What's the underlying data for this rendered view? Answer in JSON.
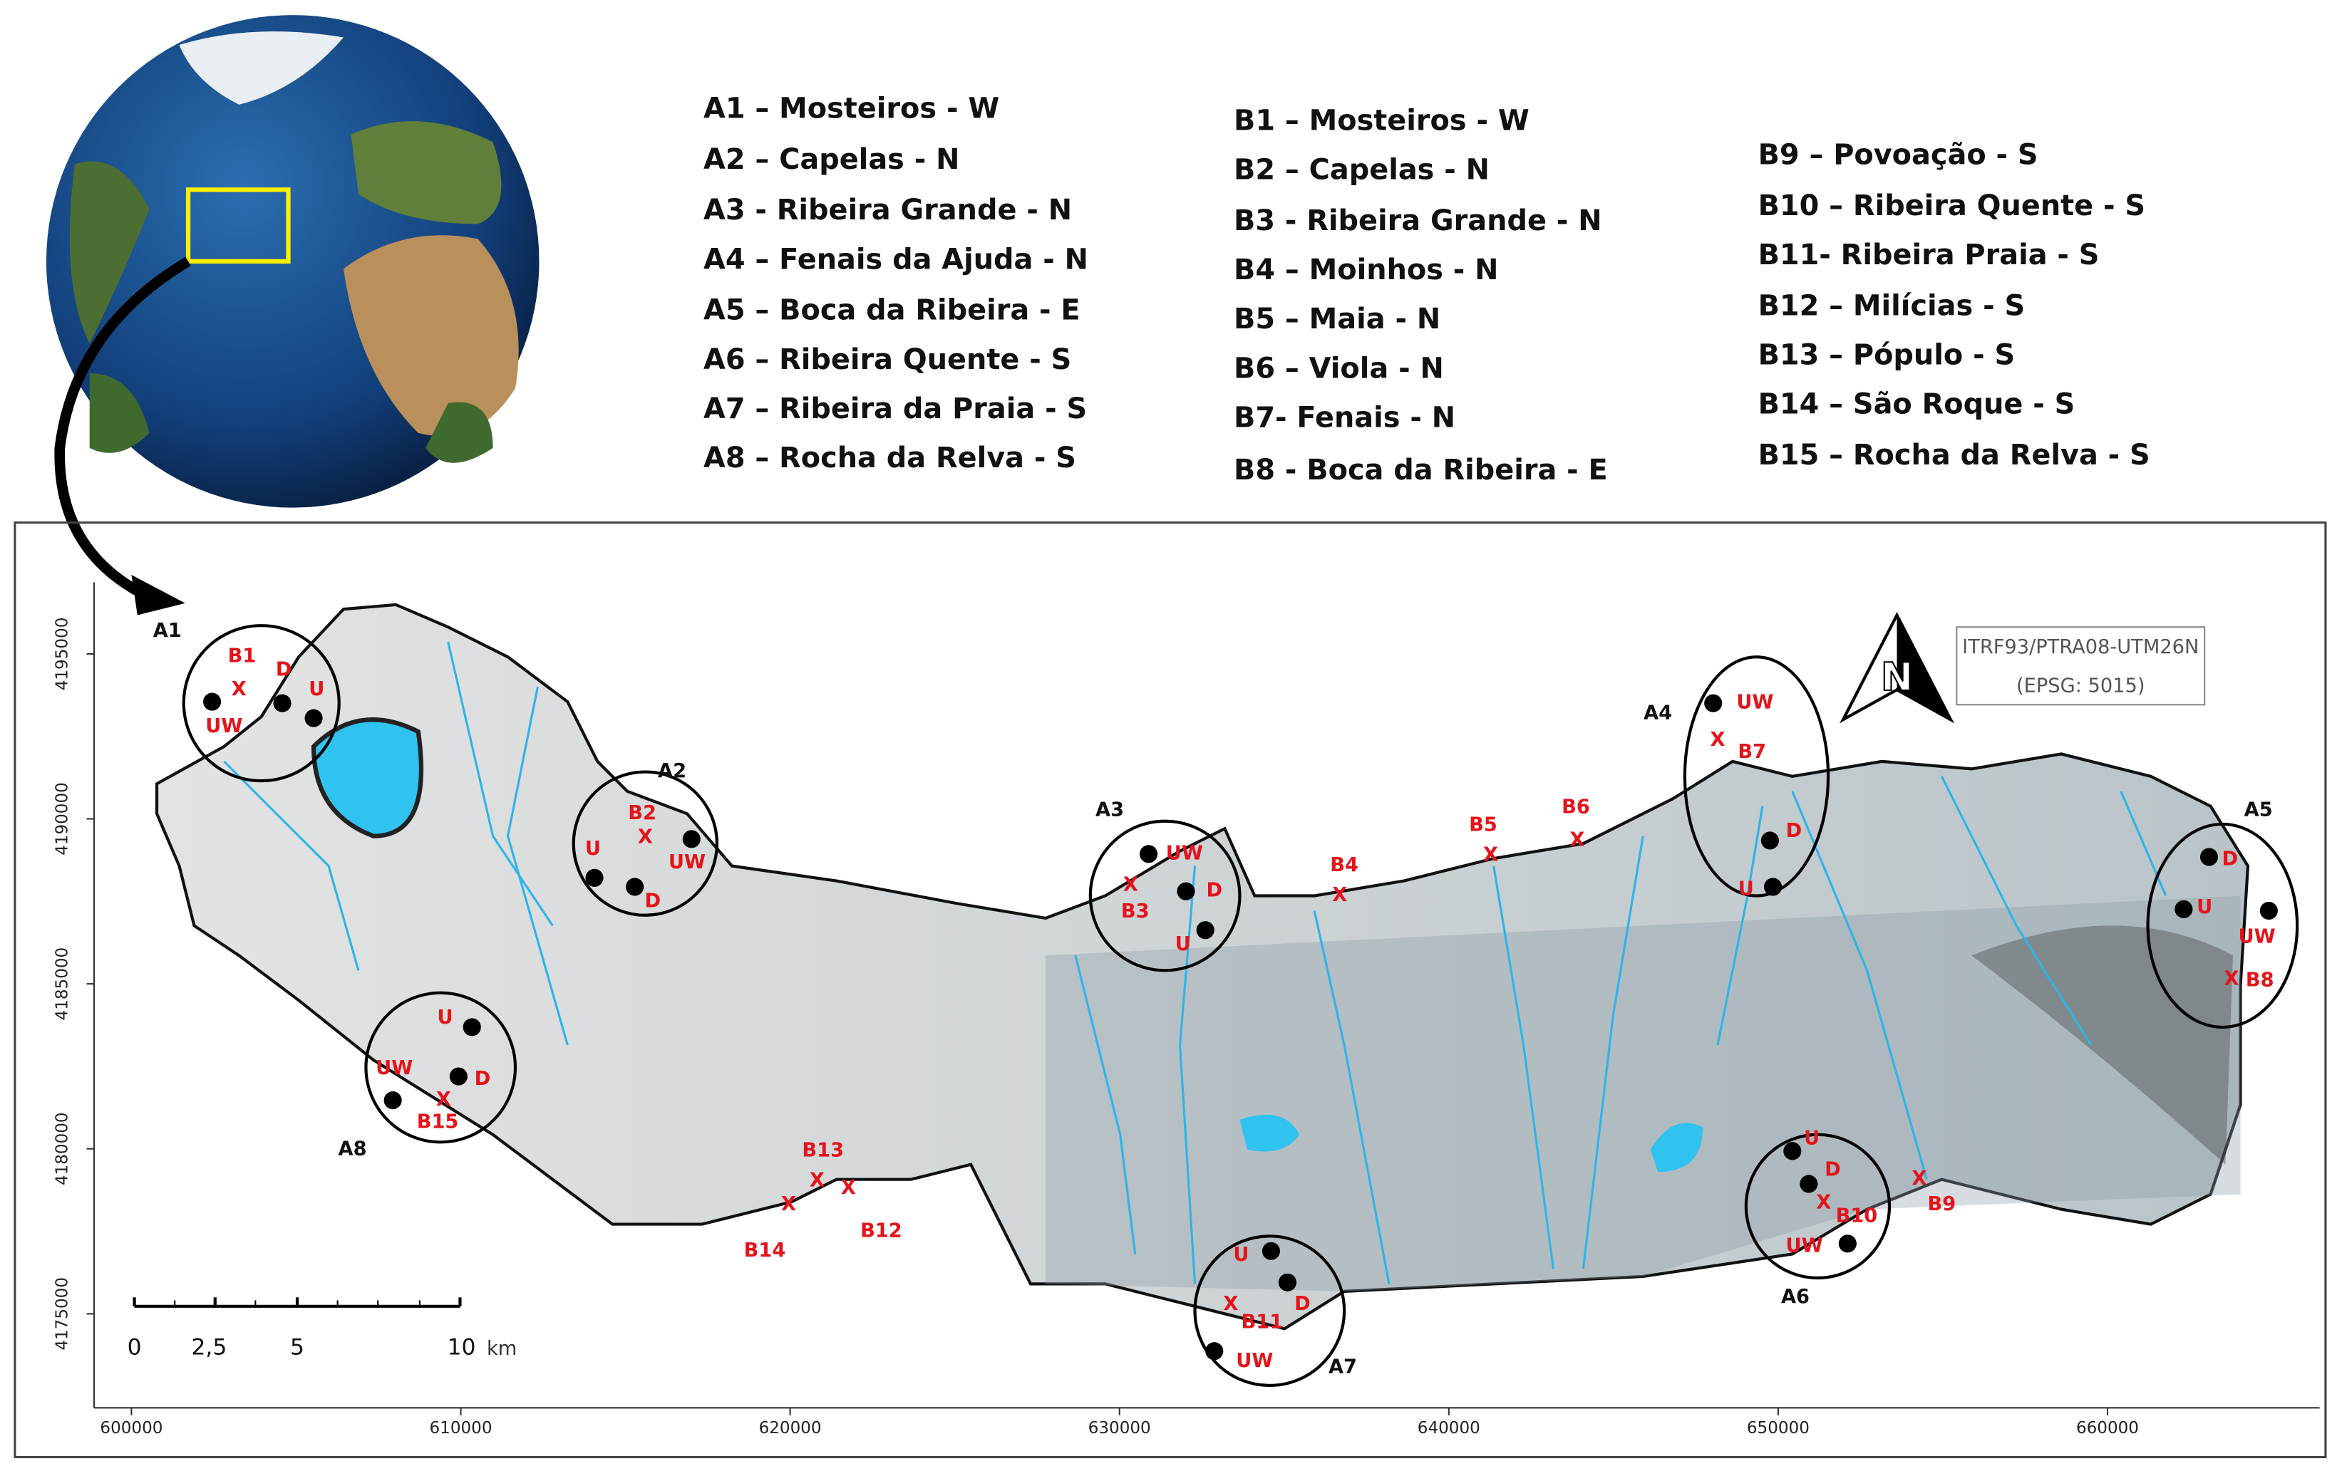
{
  "legend": {
    "column_a": [
      "A1 – Mosteiros - W",
      "A2 – Capelas - N",
      "A3 - Ribeira Grande - N",
      "A4 – Fenais da Ajuda - N",
      "A5 – Boca da Ribeira - E",
      "A6 – Ribeira Quente - S",
      "A7 – Ribeira da Praia - S",
      "A8 – Rocha da Relva - S"
    ],
    "column_b": [
      "B1 – Mosteiros - W",
      "B2 – Capelas - N",
      "B3 - Ribeira Grande - N",
      "B4 – Moinhos - N",
      "B5 – Maia - N",
      "B6 – Viola - N",
      "B7- Fenais - N",
      "B8 - Boca da Ribeira - E"
    ],
    "column_c": [
      "B9 – Povoação - S",
      "B10 – Ribeira Quente - S",
      "B11- Ribeira Praia - S",
      "B12 – Milícias - S",
      "B13 – Pópulo - S",
      "B14 – São Roque - S",
      "B15 – Rocha da Relva - S"
    ]
  },
  "map": {
    "crs": [
      "ITRF93/PTRA08-UTM26N",
      "(EPSG: 5015)"
    ],
    "xlim": [
      598866,
      666440
    ],
    "ylim": [
      4172150,
      4197170
    ],
    "xticks": [
      600000,
      610000,
      620000,
      630000,
      640000,
      650000,
      660000
    ],
    "yticks": [
      4175000,
      4180000,
      4185000,
      4190000,
      4195000
    ],
    "site_labels": [
      "A1",
      "A2",
      "A3",
      "A4",
      "A5",
      "A6",
      "A7",
      "A8"
    ],
    "markers": [
      "B1",
      "X",
      "D",
      "U",
      "UW",
      "B2",
      "X",
      "UW",
      "U",
      "D",
      "UW",
      "X",
      "B3",
      "D",
      "U",
      "B4",
      "X",
      "B5",
      "X",
      "B6",
      "X",
      "UW",
      "X",
      "B7",
      "D",
      "U",
      "D",
      "U",
      "UW",
      "X",
      "B8",
      "B9",
      "X",
      "U",
      "D",
      "X",
      "B10",
      "UW",
      "B12",
      "X",
      "B13",
      "X",
      "B14",
      "X",
      "U",
      "X",
      "B11",
      "D",
      "UW",
      "U",
      "UW",
      "D",
      "X",
      "B15"
    ],
    "scale_bar": {
      "ticks": [
        "0",
        "2,5",
        "5",
        "10"
      ],
      "unit": "km"
    }
  }
}
